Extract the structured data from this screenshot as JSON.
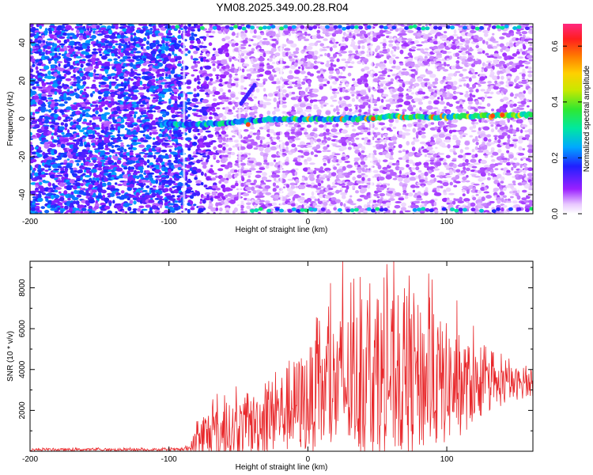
{
  "title": "YM08.2025.349.00.28.R04",
  "chart_data": [
    {
      "type": "heatmap",
      "xlabel": "Height of straight line (km)",
      "ylabel": "Frequency (Hz)",
      "xlim": [
        -200,
        162
      ],
      "ylim": [
        -50,
        50
      ],
      "xticks": [
        -200,
        -100,
        0,
        100
      ],
      "yticks": [
        -40,
        -20,
        0,
        20,
        40
      ],
      "colorbar": {
        "label": "Normalized spectral amplitude",
        "range": [
          0,
          0.68
        ],
        "ticks": [
          0.0,
          0.2,
          0.4,
          0.6
        ],
        "colormap": "white-purple-blue-cyan-green-yellow-orange-red-pink"
      },
      "features": [
        {
          "name": "0 Hz line",
          "x_start": -105,
          "x_end": 162,
          "y_points": [
            [
              -105,
              -3
            ],
            [
              -80,
              -3
            ],
            [
              -60,
              -2
            ],
            [
              -40,
              -1
            ],
            [
              -20,
              0
            ],
            [
              0,
              0
            ],
            [
              40,
              0
            ],
            [
              60,
              1
            ],
            [
              100,
              1
            ],
            [
              162,
              2
            ]
          ],
          "peak_amplitude": 0.6
        },
        {
          "name": "upper edge band",
          "x_start": -100,
          "x_end": 162,
          "y": 48
        },
        {
          "name": "lower edge band",
          "x_start": -40,
          "x_end": 162,
          "y": -48
        },
        {
          "name": "short branch",
          "x_start": -48,
          "x_end": -38,
          "y_start": 8,
          "y_end": 18
        }
      ],
      "noise": {
        "left_x_range": [
          -200,
          -90
        ],
        "left_amplitude": 0.2,
        "right_amplitude": 0.07
      }
    },
    {
      "type": "line",
      "xlabel": "Height of straight line (km)",
      "ylabel": "SNR (10 * v/v)",
      "xlim": [
        -200,
        162
      ],
      "ylim": [
        0,
        9300
      ],
      "xticks": [
        -200,
        -100,
        0,
        100
      ],
      "yticks": [
        2000,
        4000,
        6000,
        8000
      ],
      "series": [
        {
          "color": "#e8282b",
          "envelope_x": [
            -200,
            -90,
            -85,
            -80,
            -75,
            -70,
            -60,
            -50,
            -40,
            -30,
            -20,
            -10,
            0,
            10,
            20,
            30,
            40,
            50,
            60,
            70,
            80,
            90,
            100,
            110,
            120,
            130,
            140,
            150,
            162
          ],
          "envelope_base": [
            80,
            80,
            150,
            400,
            700,
            800,
            900,
            1100,
            1300,
            1600,
            1900,
            2200,
            2500,
            2800,
            3100,
            3300,
            3500,
            3500,
            3600,
            3500,
            3500,
            3400,
            3300,
            3200,
            3200,
            3100,
            3200,
            3300,
            3300
          ],
          "envelope_amp": [
            60,
            60,
            150,
            900,
            1300,
            1300,
            1300,
            1400,
            1500,
            1700,
            2000,
            2300,
            2600,
            2900,
            3500,
            3600,
            3700,
            3800,
            3900,
            3800,
            3700,
            3400,
            3000,
            2500,
            1800,
            1200,
            1000,
            800,
            600
          ],
          "peak_x": [
            25,
            73,
            87
          ],
          "peak_values": [
            9300,
            8600,
            8700
          ]
        }
      ]
    }
  ]
}
